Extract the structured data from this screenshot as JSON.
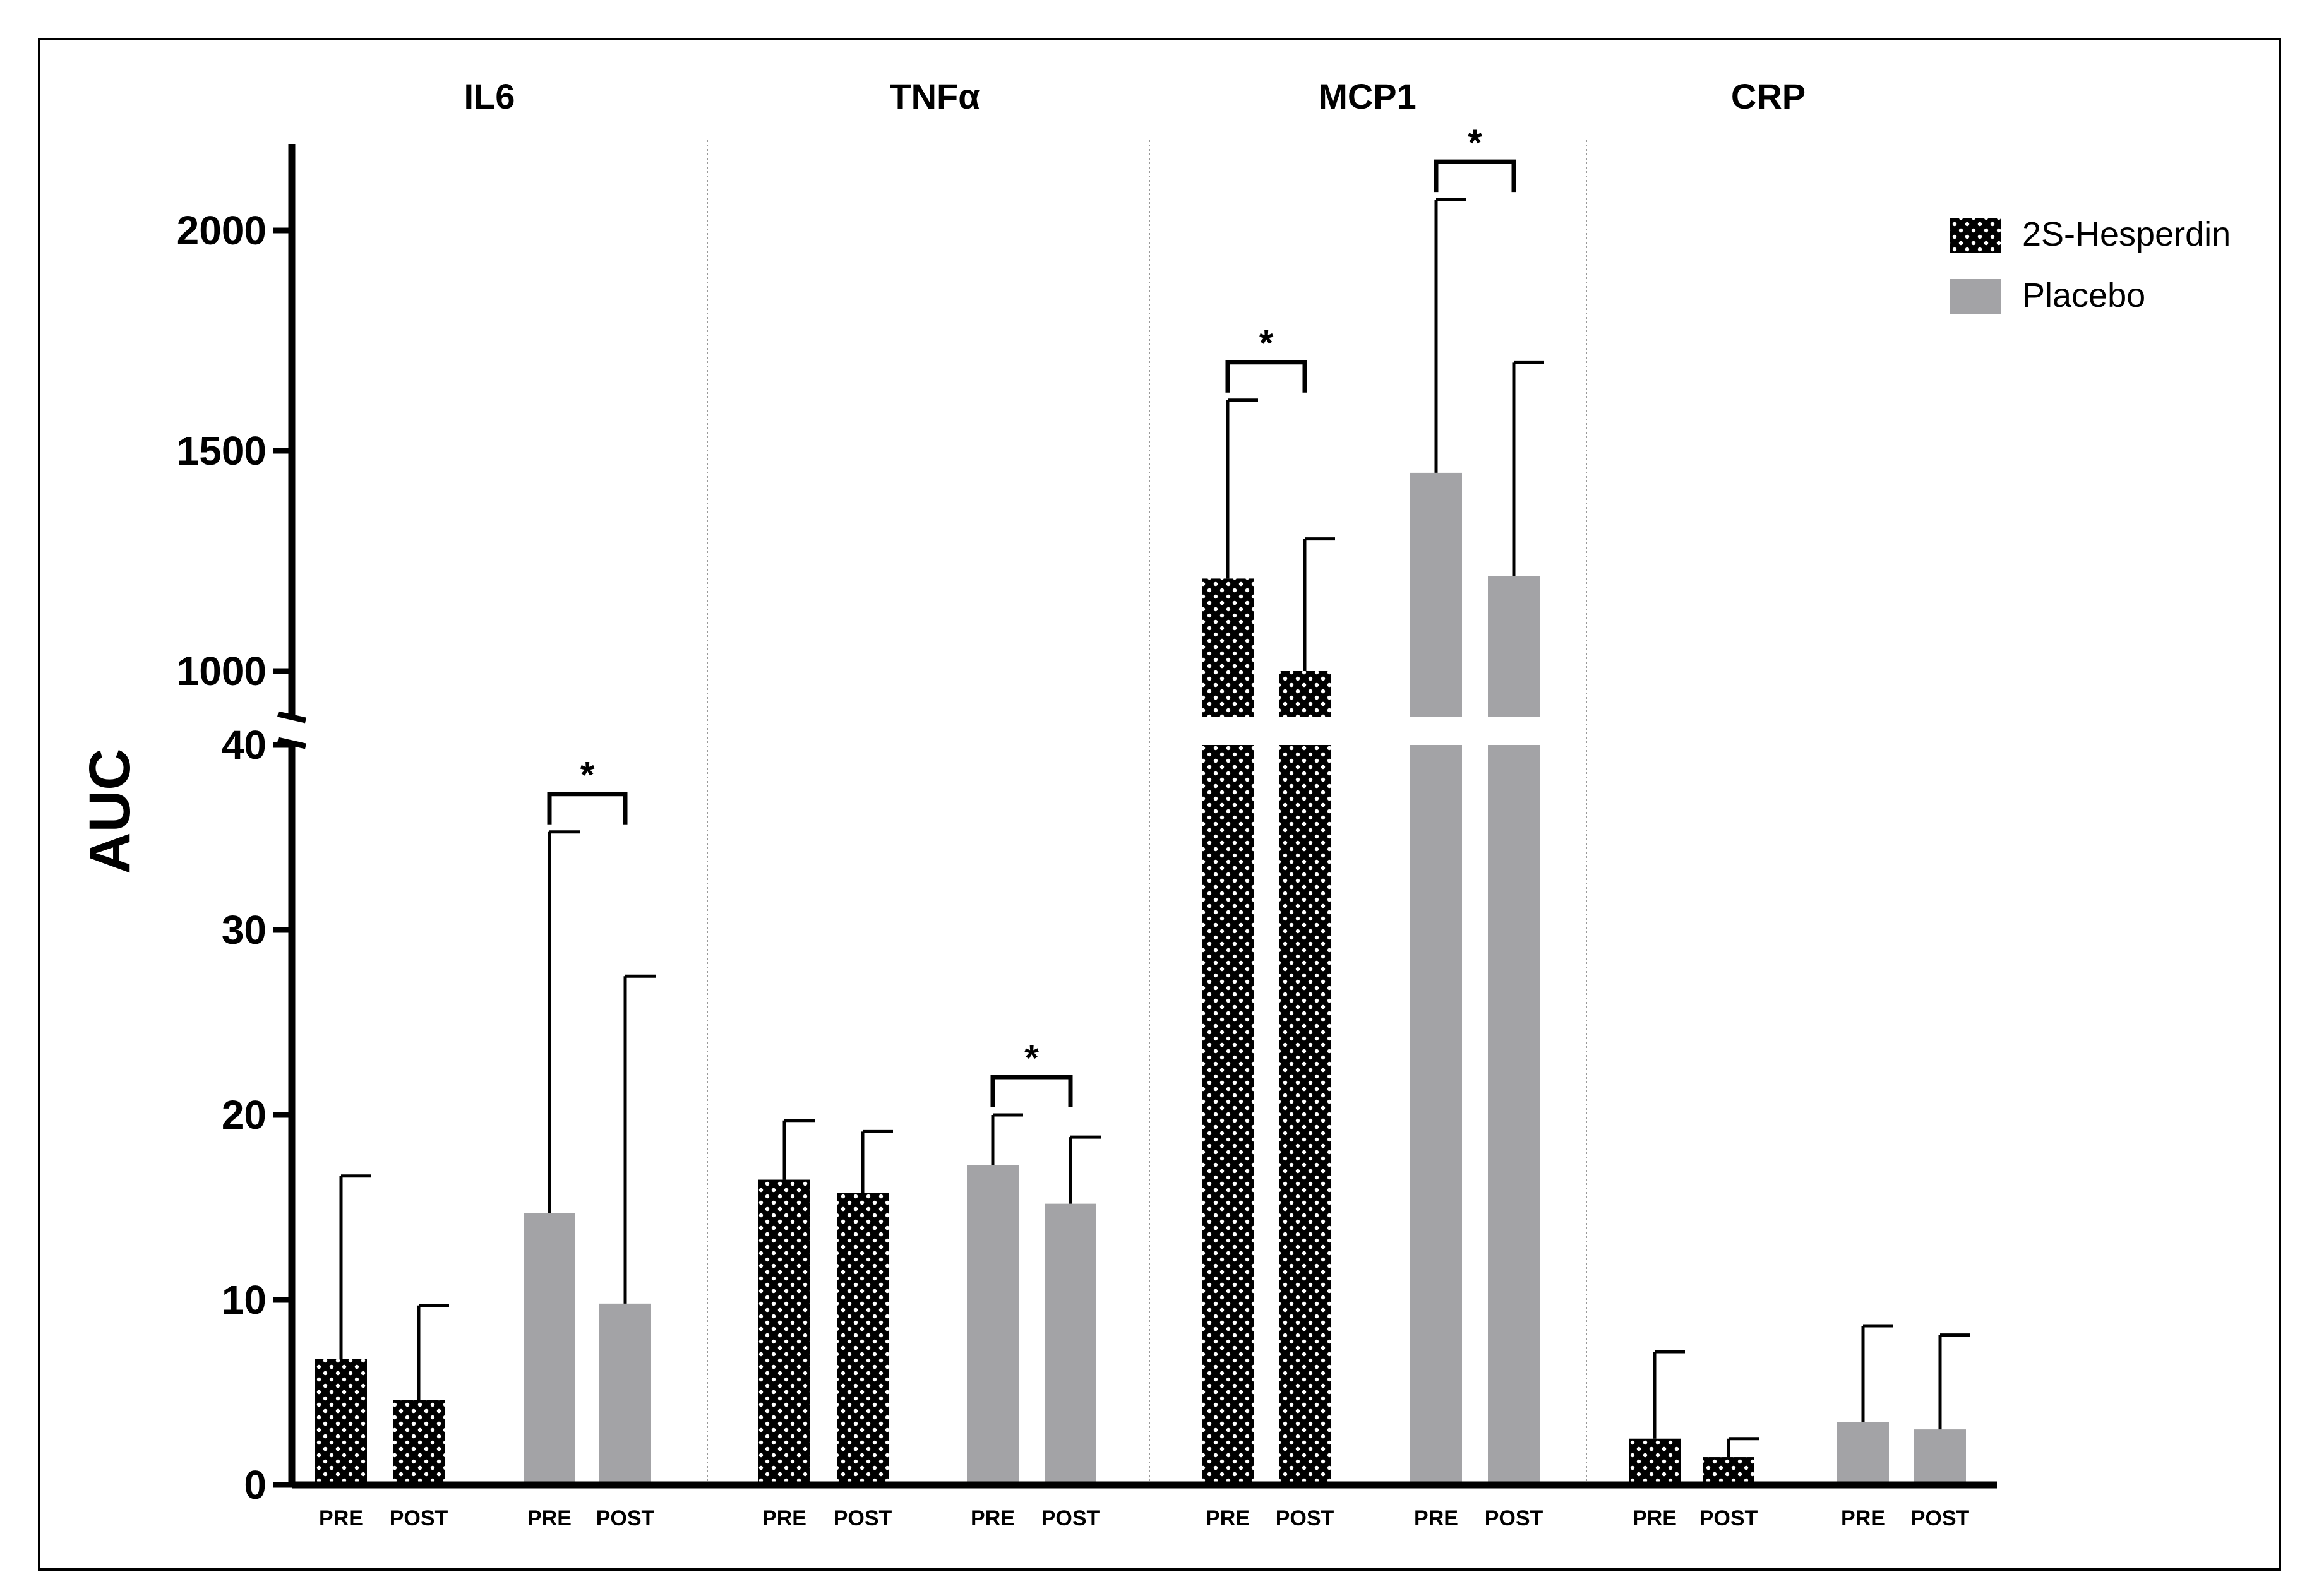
{
  "chart_data": {
    "type": "bar",
    "ylabel": "AUC",
    "y_axis": {
      "broken": true,
      "lower_range": [
        0,
        40
      ],
      "upper_range": [
        880,
        2200
      ],
      "lower_ticks": [
        0,
        10,
        20,
        30,
        40
      ],
      "upper_ticks": [
        1000,
        1500,
        2000
      ]
    },
    "bar_labels": [
      "PRE",
      "POST"
    ],
    "legend": [
      {
        "key": "hesperidin",
        "label": "2S-Hesperdin",
        "color": "#000000",
        "pattern": "dotted"
      },
      {
        "key": "placebo",
        "label": "Placebo",
        "color": "#a3a3a6",
        "pattern": "solid"
      }
    ],
    "significance_marker": "*",
    "panels": [
      {
        "title": "IL6",
        "groups": [
          {
            "series": "hesperidin",
            "values": [
              6.8,
              4.6
            ],
            "error_upper": [
              16.7,
              9.7
            ],
            "significant": false
          },
          {
            "series": "placebo",
            "values": [
              14.7,
              9.8
            ],
            "error_upper": [
              35.3,
              27.5
            ],
            "significant": true
          }
        ]
      },
      {
        "title": "TNFα",
        "groups": [
          {
            "series": "hesperidin",
            "values": [
              16.5,
              15.8
            ],
            "error_upper": [
              19.7,
              19.1
            ],
            "significant": false
          },
          {
            "series": "placebo",
            "values": [
              17.3,
              15.2
            ],
            "error_upper": [
              20.0,
              18.8
            ],
            "significant": true
          }
        ]
      },
      {
        "title": "MCP1",
        "groups": [
          {
            "series": "hesperidin",
            "values": [
              1210,
              1000
            ],
            "error_upper": [
              1615,
              1300
            ],
            "significant": true
          },
          {
            "series": "placebo",
            "values": [
              1450,
              1215
            ],
            "error_upper": [
              2070,
              1700
            ],
            "significant": true
          }
        ]
      },
      {
        "title": "CRP",
        "groups": [
          {
            "series": "hesperidin",
            "values": [
              2.5,
              1.5
            ],
            "error_upper": [
              7.2,
              2.5
            ],
            "significant": false
          },
          {
            "series": "placebo",
            "values": [
              3.4,
              3.0
            ],
            "error_upper": [
              8.6,
              8.1
            ],
            "significant": false
          }
        ]
      }
    ]
  }
}
